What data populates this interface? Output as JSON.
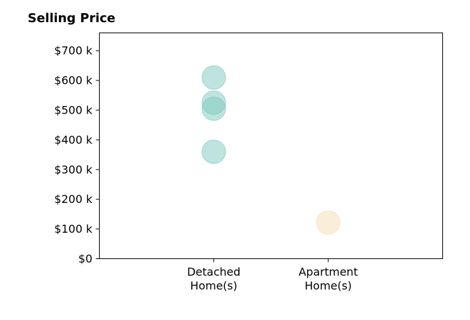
{
  "chart_data": {
    "type": "scatter",
    "title": "Selling Price",
    "categories": [
      [
        "Detached",
        "Home(s)"
      ],
      [
        "Apartment",
        "Home(s)"
      ]
    ],
    "yticks": [
      0,
      100,
      200,
      300,
      400,
      500,
      600,
      700
    ],
    "ytick_labels": [
      "$0",
      "$100 k",
      "$200 k",
      "$300 k",
      "$400 k",
      "$500 k",
      "$600 k",
      "$700 k"
    ],
    "ylim": [
      0,
      760
    ],
    "xlim": [
      -1,
      2
    ],
    "grid": false,
    "series": [
      {
        "category_index": 0,
        "color": "#7fc9bf",
        "values": [
          610,
          525,
          505,
          360
        ]
      },
      {
        "category_index": 1,
        "color": "#f5deb3",
        "values": [
          122
        ]
      }
    ]
  }
}
